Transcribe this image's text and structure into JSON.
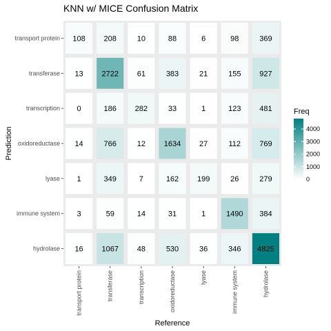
{
  "chart_data": {
    "type": "heatmap",
    "title": "KNN w/ MICE Confusion Matrix",
    "xlabel": "Reference",
    "ylabel": "Prediction",
    "x_categories": [
      "transport protein",
      "transferase",
      "transcription",
      "oxidoreductase",
      "lyase",
      "immune system",
      "hydrolase"
    ],
    "y_categories": [
      "transport protein",
      "transferase",
      "transcription",
      "oxidoreductase",
      "lyase",
      "immune system",
      "hydrolase"
    ],
    "values": [
      [
        108,
        208,
        10,
        88,
        6,
        98,
        369
      ],
      [
        13,
        2722,
        61,
        383,
        21,
        155,
        927
      ],
      [
        0,
        186,
        282,
        33,
        1,
        123,
        481
      ],
      [
        14,
        766,
        12,
        1634,
        27,
        112,
        769
      ],
      [
        1,
        349,
        7,
        162,
        199,
        26,
        279
      ],
      [
        3,
        59,
        14,
        31,
        1,
        1490,
        384
      ],
      [
        16,
        1067,
        48,
        530,
        36,
        346,
        4825
      ]
    ],
    "legend": {
      "title": "Freq",
      "ticks": [
        0,
        1000,
        2000,
        3000,
        4000
      ],
      "low_color": "#ffffff",
      "high_color": "#008080",
      "range": [
        0,
        4825
      ],
      "placement": "right"
    },
    "grid": true,
    "panel_background": "#ebebeb"
  }
}
